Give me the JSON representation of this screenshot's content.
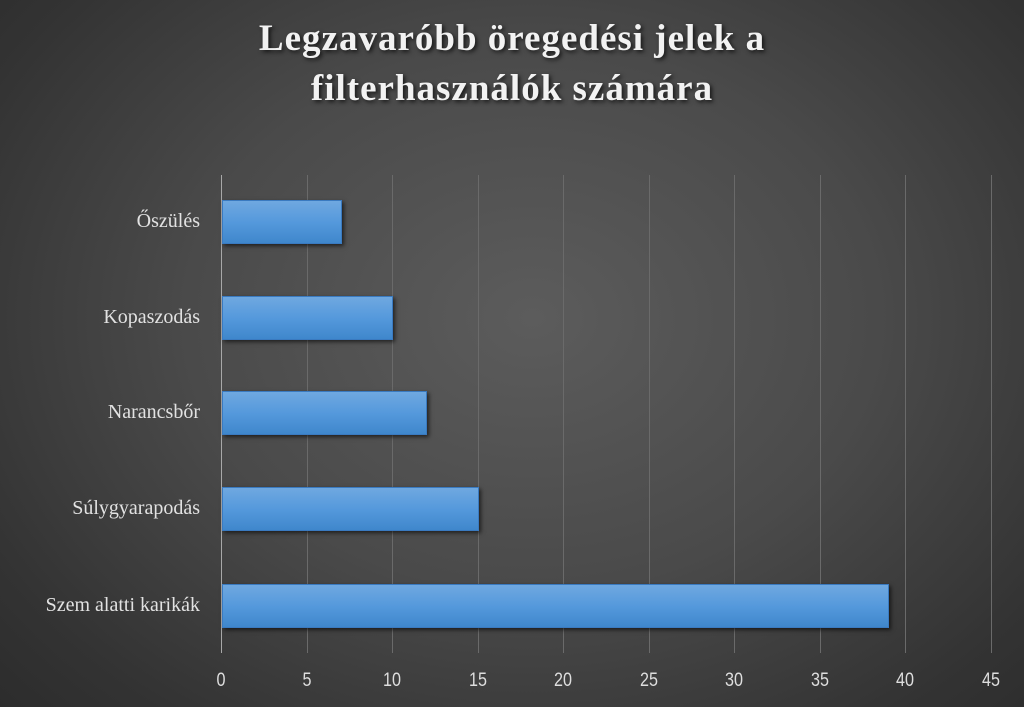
{
  "chart_data": {
    "type": "bar",
    "orientation": "horizontal",
    "title": "Legzavaróbb öregedési jelek a filterhasználók számára",
    "title_lines": [
      "Legzavaróbb öregedési jelek a",
      "filterhasználók számára"
    ],
    "categories": [
      "Őszülés",
      "Kopaszodás",
      "Narancsbőr",
      "Súlygyarapodás",
      "Szem alatti karikák"
    ],
    "values": [
      7,
      10,
      12,
      15,
      39
    ],
    "xlabel": "",
    "ylabel": "",
    "xlim": [
      0,
      45
    ],
    "x_ticks": [
      "0",
      "5",
      "10",
      "15",
      "20",
      "25",
      "30",
      "35",
      "40",
      "45"
    ],
    "grid": true,
    "legend": null,
    "colors": {
      "bar": "#5599dc",
      "background": "#4a4a4a",
      "text": "#e2e2e2"
    }
  }
}
